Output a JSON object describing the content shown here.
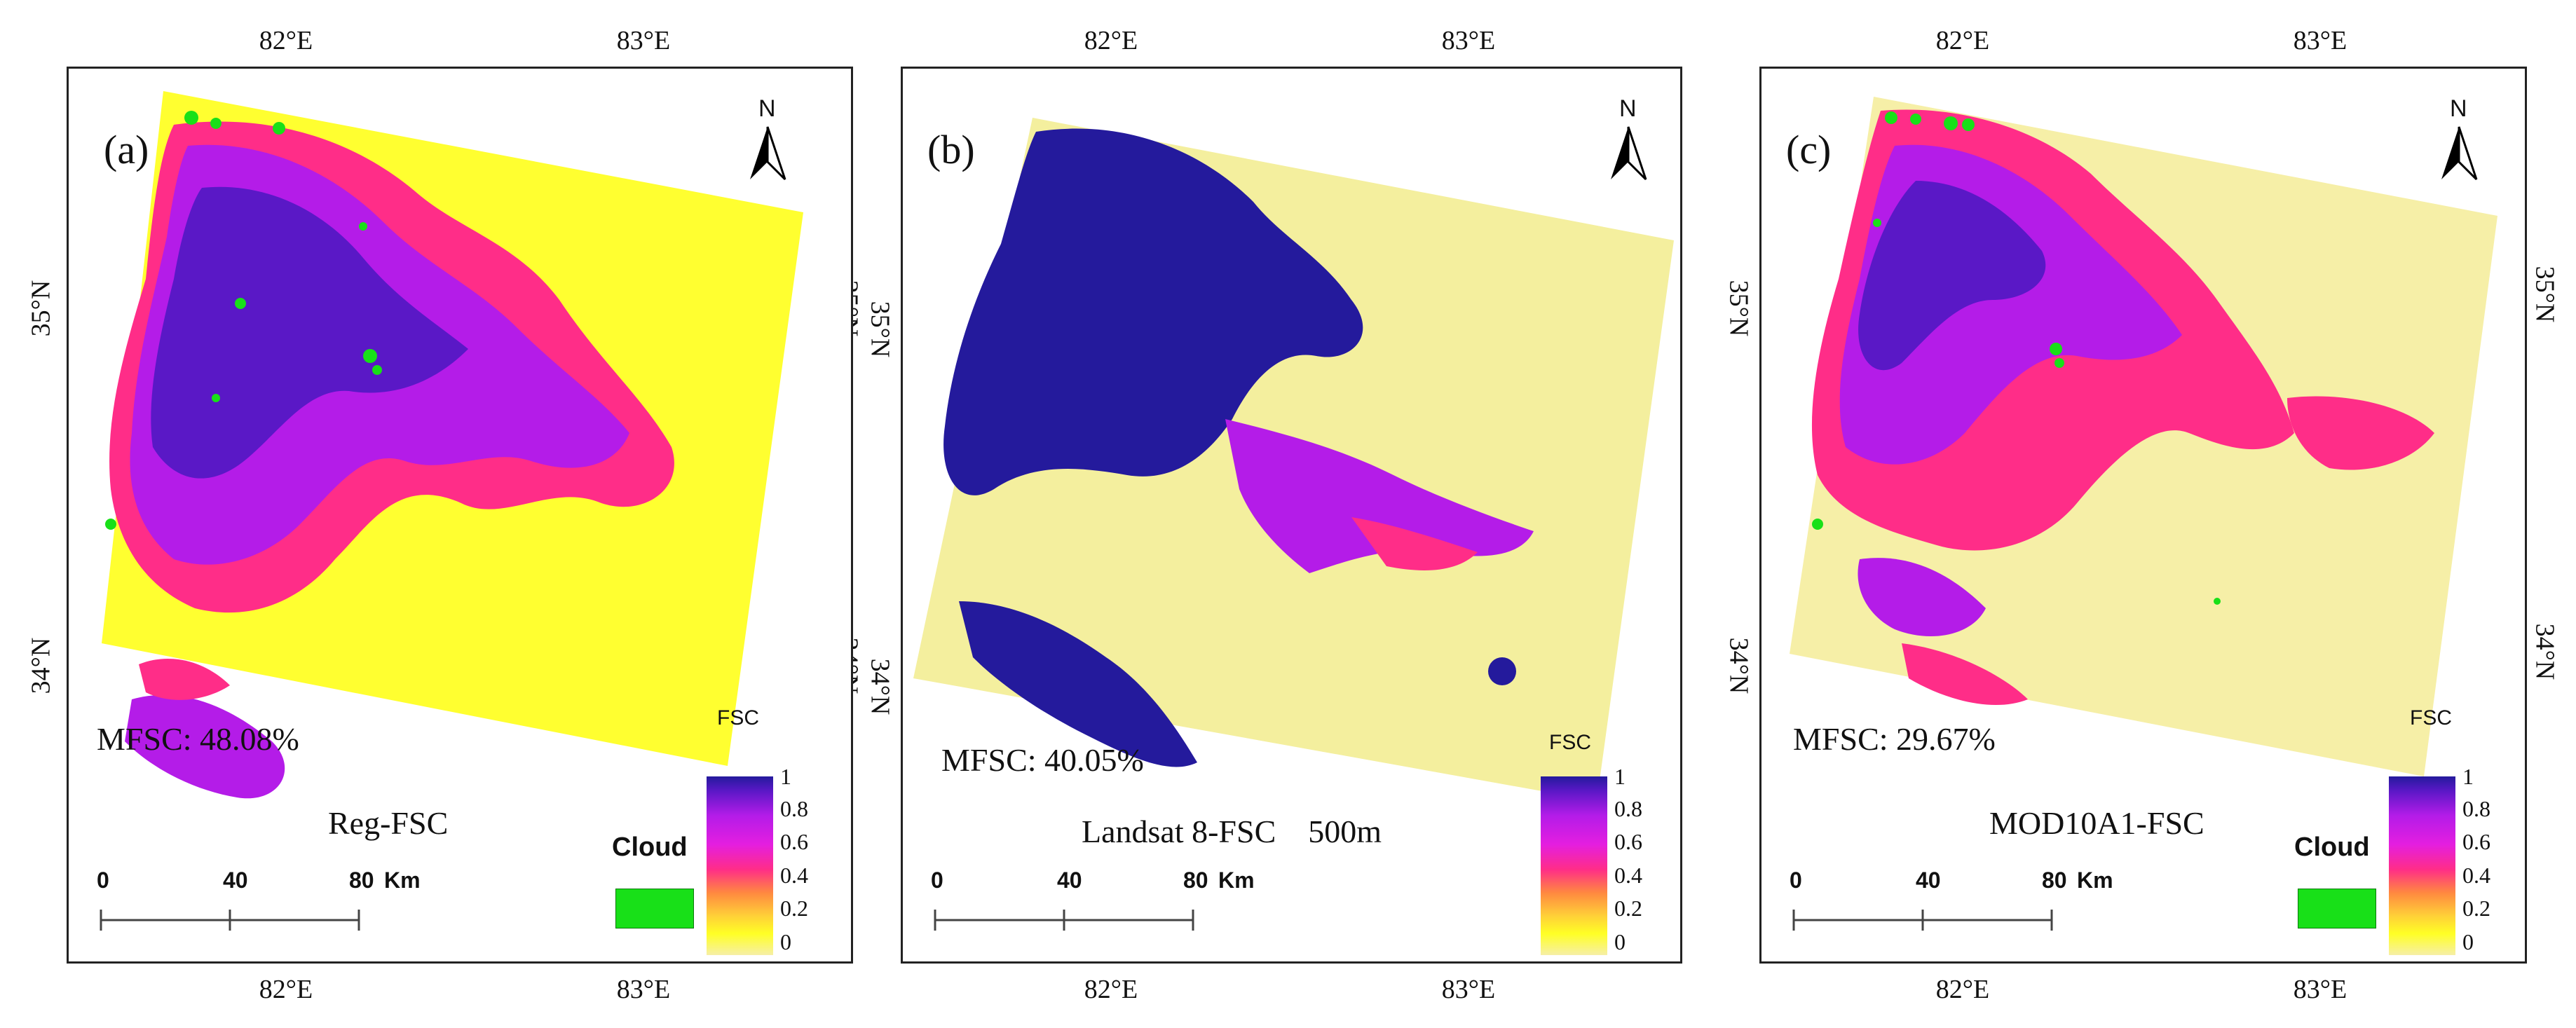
{
  "colors": {
    "cloud": "#18e018",
    "fsc_low": "#f6efa7",
    "fsc_high": "#241a9c",
    "frame": "#222222"
  },
  "axis": {
    "lon_ticks": [
      "82°E",
      "83°E"
    ],
    "lat_ticks": [
      "35°N",
      "34°N"
    ]
  },
  "north_arrow": {
    "letter": "N",
    "icon": "north-arrow-icon"
  },
  "scale_bar": {
    "labels": [
      "0",
      "40",
      "80"
    ],
    "unit": "Km"
  },
  "colorbar": {
    "title": "FSC",
    "ticks": [
      "1",
      "0.8",
      "0.6",
      "0.4",
      "0.2",
      "0"
    ],
    "range": [
      0,
      1
    ]
  },
  "cloud_legend": {
    "label": "Cloud"
  },
  "panels": [
    {
      "id": "a",
      "label": "(a)",
      "mfsc": "MFSC: 48.08%",
      "product": "Reg-FSC",
      "has_cloud_legend": true
    },
    {
      "id": "b",
      "label": "(b)",
      "mfsc": "MFSC: 40.05%",
      "product": "Landsat 8-FSC    500m",
      "has_cloud_legend": false
    },
    {
      "id": "c",
      "label": "(c)",
      "mfsc": "MFSC: 29.67%",
      "product": "MOD10A1-FSC",
      "has_cloud_legend": true
    }
  ]
}
